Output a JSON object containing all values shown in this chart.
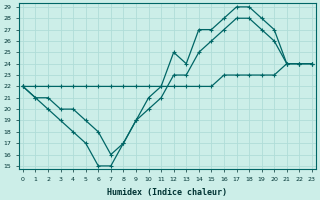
{
  "xlabel": "Humidex (Indice chaleur)",
  "background_color": "#cceee8",
  "grid_color": "#b0ddd8",
  "line_color": "#006666",
  "x": [
    0,
    1,
    2,
    3,
    4,
    5,
    6,
    7,
    8,
    9,
    10,
    11,
    12,
    13,
    14,
    15,
    16,
    17,
    18,
    19,
    20,
    21,
    22,
    23
  ],
  "line1": [
    22,
    21,
    20,
    19,
    18,
    17,
    15,
    15,
    17,
    19,
    21,
    22,
    25,
    24,
    27,
    27,
    28,
    29,
    29,
    28,
    27,
    24,
    24,
    24
  ],
  "line2": [
    22,
    21,
    21,
    20,
    20,
    19,
    18,
    16,
    17,
    19,
    20,
    21,
    23,
    23,
    25,
    26,
    27,
    28,
    28,
    27,
    26,
    24,
    24,
    24
  ],
  "line3": [
    22,
    22,
    22,
    22,
    22,
    22,
    22,
    22,
    22,
    22,
    22,
    22,
    22,
    22,
    22,
    22,
    23,
    23,
    23,
    23,
    23,
    24,
    24,
    24
  ],
  "ylim_min": 15,
  "ylim_max": 29,
  "xlim_min": 0,
  "xlim_max": 23
}
